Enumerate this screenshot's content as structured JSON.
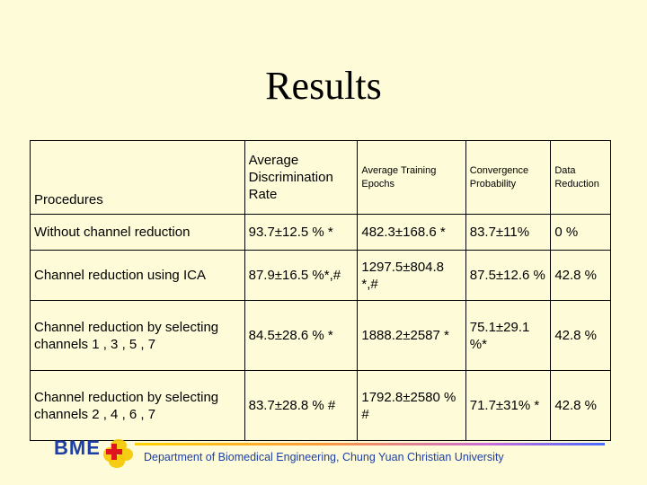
{
  "slide": {
    "title": "Results",
    "footer": "Department of Biomedical Engineering, Chung Yuan Christian University",
    "logo_text": "BME"
  },
  "table": {
    "headers": {
      "procedures": "Procedures",
      "discrimination": "Average Discrimination Rate",
      "epochs": "Average Training Epochs",
      "convergence": "Convergence Probability",
      "reduction": "Data Reduction"
    },
    "rows": [
      {
        "procedure": "Without channel reduction",
        "discrimination": "93.7±12.5 % *",
        "epochs": "482.3±168.6 *",
        "convergence": "83.7±11%",
        "reduction": "0 %"
      },
      {
        "procedure": "Channel reduction using ICA",
        "discrimination": "87.9±16.5 %*,#",
        "epochs": "1297.5±804.8 *,#",
        "convergence": "87.5±12.6 %",
        "reduction": "42.8 %"
      },
      {
        "procedure": "Channel reduction by selecting channels 1 , 3 , 5 , 7",
        "discrimination": "84.5±28.6 % *",
        "epochs": "1888.2±2587 *",
        "convergence": "75.1±29.1 %*",
        "reduction": "42.8 %"
      },
      {
        "procedure": "Channel reduction by selecting channels 2 , 4 , 6 , 7",
        "discrimination": "83.7±28.8 % #",
        "epochs": "1792.8±2580 % #",
        "convergence": "71.7±31% *",
        "reduction": "42.8 %"
      }
    ]
  },
  "colors": {
    "background": "#fefbd8",
    "footer_text": "#1f3fa6",
    "logo_cross": "#e0141e",
    "logo_flower": "#f5c800"
  }
}
